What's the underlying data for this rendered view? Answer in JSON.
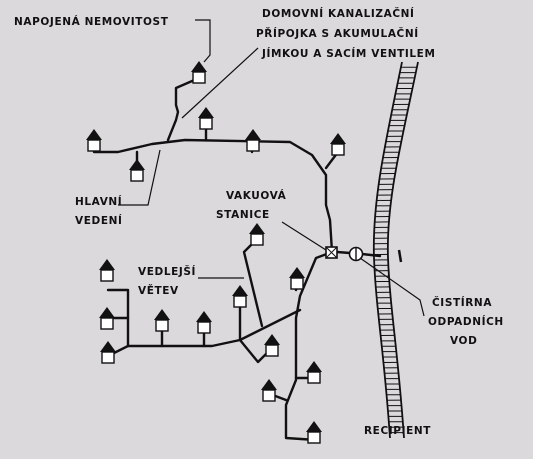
{
  "labels": {
    "connected_property": "NAPOJENÁ NEMOVITOST",
    "house_connection_1": "DOMOVNÍ KANALIZAČNÍ",
    "house_connection_2": "PŘÍPOJKA S AKUMULAČNÍ",
    "house_connection_3": "JÍMKOU A SACÍM VENTILEM",
    "main_line_1": "HLAVNÍ",
    "main_line_2": "VEDENÍ",
    "vacuum_station_1": "VAKUOVÁ",
    "vacuum_station_2": "STANICE",
    "side_branch_1": "VEDLEJŠÍ",
    "side_branch_2": "VĚTEV",
    "treatment_plant_1": "ČISTÍRNA",
    "treatment_plant_2": "ODPADNÍCH",
    "treatment_plant_3": "VOD",
    "recipient": "RECIPIENT"
  },
  "colors": {
    "background": "#dcd9dd",
    "ink": "#111111",
    "house_wall": "#ffffff"
  },
  "icons": {
    "house": "house-icon",
    "vacuum_station": "vacuum-station-icon",
    "treatment_plant": "treatment-plant-icon",
    "river": "river-icon"
  }
}
